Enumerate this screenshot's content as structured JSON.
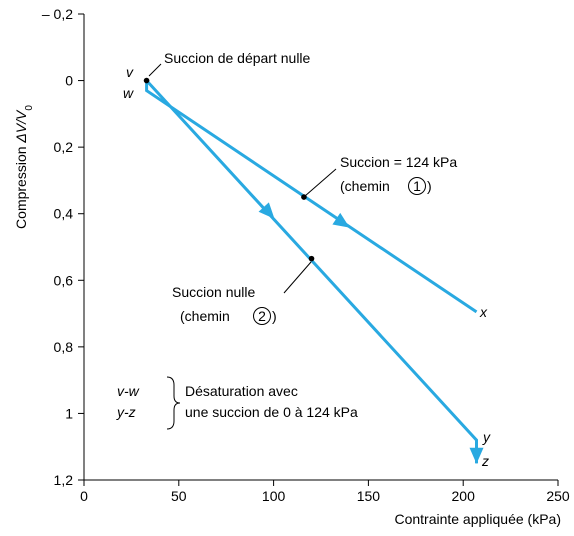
{
  "chart_data": {
    "type": "line",
    "title": "",
    "xlabel": "Contrainte appliquée (kPa)",
    "ylabel_prefix": "Compression ",
    "ylabel_symbol": "ΔV/V",
    "ylabel_sub": "0",
    "xlim": [
      0,
      250
    ],
    "ylim": [
      -0.2,
      1.2
    ],
    "y_inverted": true,
    "grid": false,
    "x_ticks": [
      0,
      50,
      100,
      150,
      200,
      250
    ],
    "x_tick_labels": [
      "0",
      "50",
      "100",
      "150",
      "200",
      "250"
    ],
    "y_ticks": [
      -0.2,
      0,
      0.2,
      0.4,
      0.6,
      0.8,
      1,
      1.2
    ],
    "y_tick_labels": [
      "– 0,2",
      "0",
      "0,2",
      "0,4",
      "0,6",
      "0,8",
      "1",
      "1,2"
    ],
    "series": [
      {
        "path": "1",
        "color": "#29a9e1",
        "points": [
          [
            33,
            0
          ],
          [
            33,
            0.03
          ],
          [
            207,
            0.695
          ]
        ],
        "arrow_at": [
          [
            137,
            0.43
          ]
        ]
      },
      {
        "path": "2",
        "color": "#29a9e1",
        "points": [
          [
            33,
            0
          ],
          [
            207,
            1.08
          ],
          [
            207,
            1.15
          ]
        ],
        "arrow_at": [
          [
            98,
            0.4
          ],
          [
            207,
            1.13
          ]
        ]
      }
    ],
    "point_labels": [
      {
        "text": "v",
        "x": 33,
        "y": 0
      },
      {
        "text": "w",
        "x": 33,
        "y": 0.03
      },
      {
        "text": "x",
        "x": 207,
        "y": 0.695
      },
      {
        "text": "y",
        "x": 207,
        "y": 1.08
      },
      {
        "text": "z",
        "x": 207,
        "y": 1.15
      }
    ],
    "markers": [
      {
        "x": 33,
        "y": 0
      },
      {
        "x": 116,
        "y": 0.35
      },
      {
        "x": 120,
        "y": 0.535
      }
    ],
    "annotations": {
      "start": "Succion de départ nulle",
      "suction_124": "Succion = 124 kPa",
      "path_1_open": "(chemin ",
      "path_1_num": "1",
      "path_1_close": ")",
      "suction_zero": "Succion nulle",
      "path_2_open": "(chemin ",
      "path_2_num": "2",
      "path_2_close": ")",
      "legend_vw": "v-w",
      "legend_yz": "y-z",
      "legend_line1": "Désaturation avec",
      "legend_line2": "une succion de 0 à 124 kPa"
    }
  }
}
